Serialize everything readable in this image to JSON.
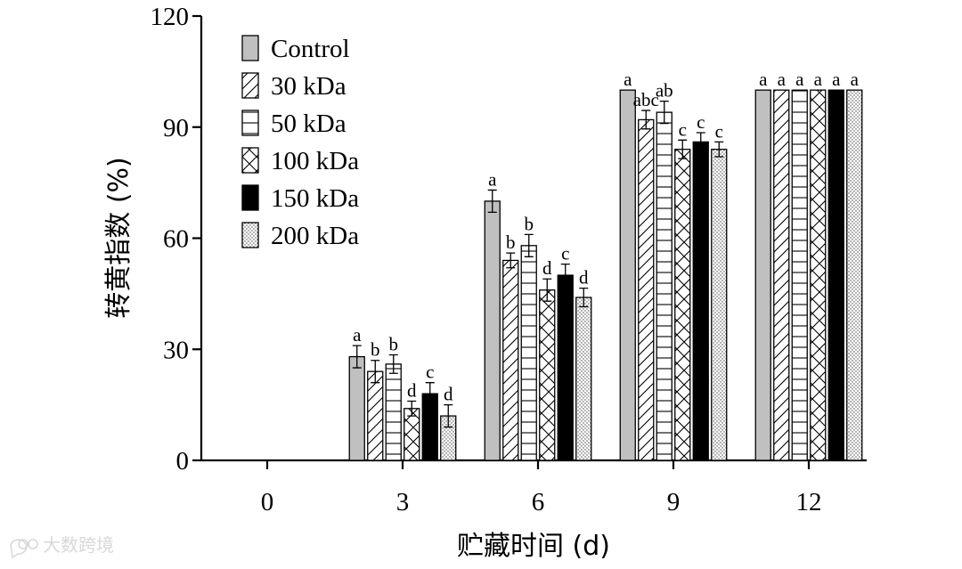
{
  "chart_data": {
    "type": "bar",
    "title": "",
    "xlabel": "贮藏时间 (d)",
    "ylabel": "转黄指数 (%)",
    "ylim": [
      0,
      120
    ],
    "yticks": [
      0,
      30,
      60,
      90,
      120
    ],
    "categories": [
      "0",
      "3",
      "6",
      "9",
      "12"
    ],
    "legend_position": "top-left",
    "series": [
      {
        "name": "Control",
        "pattern": "gray",
        "fill": "#c0c0c0",
        "values": [
          0,
          28,
          70,
          100,
          100
        ],
        "errors": [
          0,
          3,
          3,
          0,
          0
        ],
        "significance": [
          "",
          "a",
          "a",
          "a",
          "a"
        ]
      },
      {
        "name": "30 kDa",
        "pattern": "diagonal",
        "values": [
          0,
          24,
          54,
          92,
          100
        ],
        "errors": [
          0,
          3,
          2,
          2.5,
          0
        ],
        "significance": [
          "",
          "b",
          "b",
          "abc",
          "a"
        ]
      },
      {
        "name": "50 kDa",
        "pattern": "horizontal",
        "values": [
          0,
          26,
          58,
          94,
          100
        ],
        "errors": [
          0,
          2.5,
          3,
          3,
          0
        ],
        "significance": [
          "",
          "b",
          "b",
          "ab",
          "a"
        ]
      },
      {
        "name": "100 kDa",
        "pattern": "crosshatch",
        "values": [
          0,
          14,
          46,
          84,
          100
        ],
        "errors": [
          0,
          2,
          3,
          2.5,
          0
        ],
        "significance": [
          "",
          "d",
          "d",
          "c",
          "a"
        ]
      },
      {
        "name": "150 kDa",
        "pattern": "black",
        "fill": "#000000",
        "values": [
          0,
          18,
          50,
          86,
          100
        ],
        "errors": [
          0,
          3,
          3,
          2.5,
          0
        ],
        "significance": [
          "",
          "c",
          "c",
          "c",
          "a"
        ]
      },
      {
        "name": "200 kDa",
        "pattern": "dotted",
        "values": [
          0,
          12,
          44,
          84,
          100
        ],
        "errors": [
          0,
          3,
          2.5,
          2,
          0
        ],
        "significance": [
          "",
          "d",
          "d",
          "c",
          "a"
        ]
      }
    ]
  },
  "watermark": {
    "text": "大数跨境",
    "icon": "chat-bubble-icon"
  }
}
